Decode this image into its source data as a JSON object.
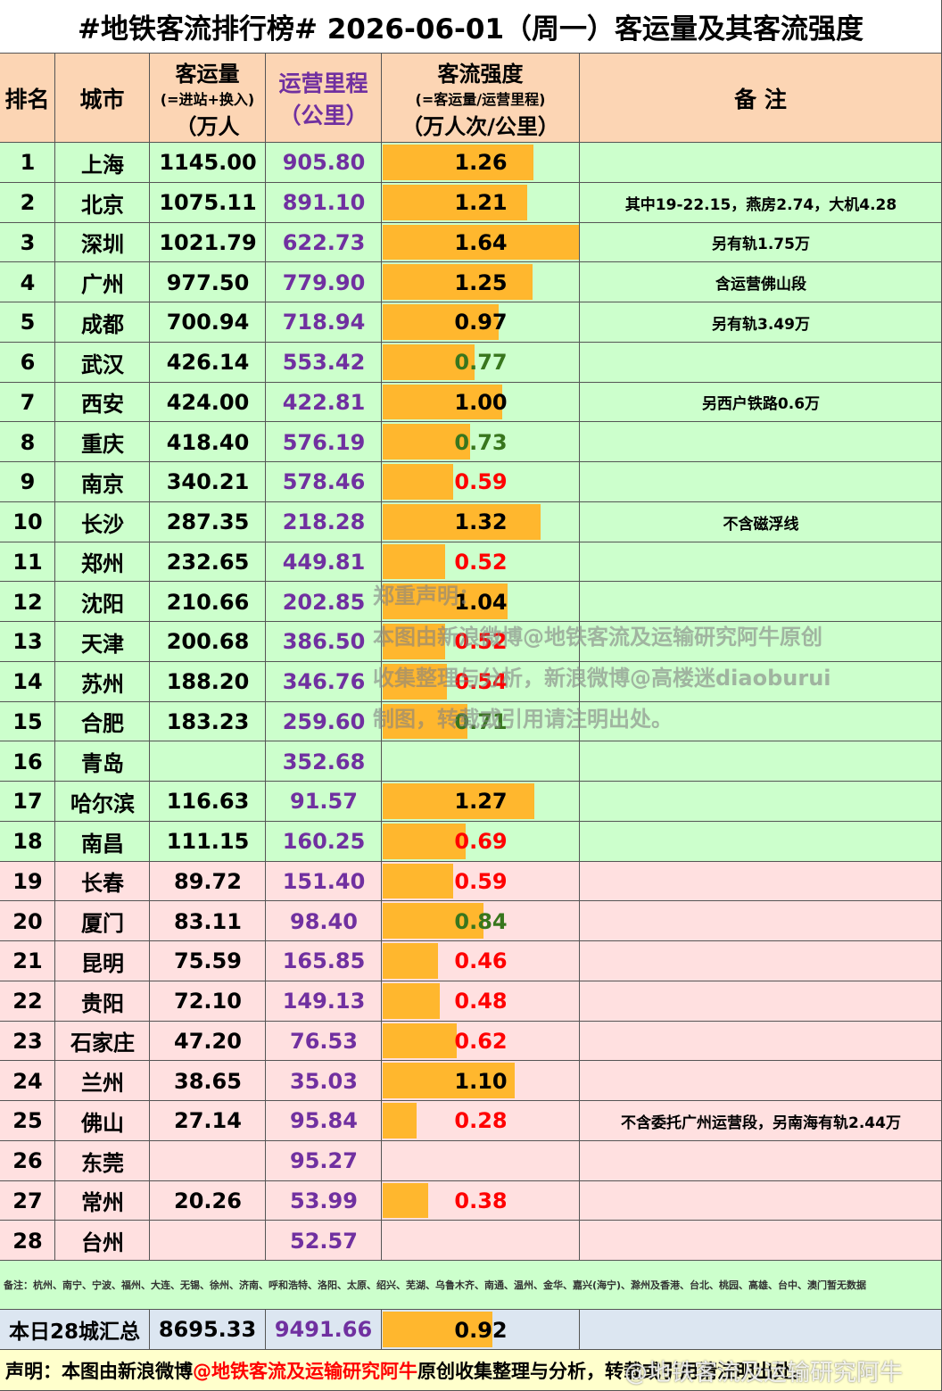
{
  "title": "#地铁客流排行榜# 2026-06-01（周一）客运量及其客流强度",
  "header": {
    "rank": "排名",
    "city": "城市",
    "ridership": [
      "客运量",
      "(=进站+换入)",
      "（万人"
    ],
    "mileage": [
      "运营里程",
      "（公里）"
    ],
    "intensity": [
      "客流强度",
      "(=客运量/运营里程)",
      "（万人次/公里）"
    ],
    "note": "备 注"
  },
  "rows": [
    {
      "rank": "1",
      "city": "上海",
      "ridership": "1145.00",
      "mileage": "905.80",
      "intensity": "1.26",
      "color": "#000000",
      "note": null,
      "bg": "#ccffcc"
    },
    {
      "rank": "2",
      "city": "北京",
      "ridership": "1075.11",
      "mileage": "891.10",
      "intensity": "1.21",
      "color": "#000000",
      "note": "其中19-22.15，燕房2.74，大机4.28",
      "bg": "#ccffcc"
    },
    {
      "rank": "3",
      "city": "深圳",
      "ridership": "1021.79",
      "mileage": "622.73",
      "intensity": "1.64",
      "color": "#000000",
      "note": "另有轨1.75万",
      "bg": "#ccffcc"
    },
    {
      "rank": "4",
      "city": "广州",
      "ridership": "977.50",
      "mileage": "779.90",
      "intensity": "1.25",
      "color": "#000000",
      "note": "含运营佛山段",
      "bg": "#ccffcc"
    },
    {
      "rank": "5",
      "city": "成都",
      "ridership": "700.94",
      "mileage": "718.94",
      "intensity": "0.97",
      "color": "#000000",
      "note": "另有轨3.49万",
      "bg": "#ccffcc"
    },
    {
      "rank": "6",
      "city": "武汉",
      "ridership": "426.14",
      "mileage": "553.42",
      "intensity": "0.77",
      "color": "#38761d",
      "note": null,
      "bg": "#ccffcc"
    },
    {
      "rank": "7",
      "city": "西安",
      "ridership": "424.00",
      "mileage": "422.81",
      "intensity": "1.00",
      "color": "#000000",
      "note": "另西户铁路0.6万",
      "bg": "#ccffcc"
    },
    {
      "rank": "8",
      "city": "重庆",
      "ridership": "418.40",
      "mileage": "576.19",
      "intensity": "0.73",
      "color": "#38761d",
      "note": null,
      "bg": "#ccffcc"
    },
    {
      "rank": "9",
      "city": "南京",
      "ridership": "340.21",
      "mileage": "578.46",
      "intensity": "0.59",
      "color": "#ff0000",
      "note": null,
      "bg": "#ccffcc"
    },
    {
      "rank": "10",
      "city": "长沙",
      "ridership": "287.35",
      "mileage": "218.28",
      "intensity": "1.32",
      "color": "#000000",
      "note": "不含磁浮线",
      "bg": "#ccffcc"
    },
    {
      "rank": "11",
      "city": "郑州",
      "ridership": "232.65",
      "mileage": "449.81",
      "intensity": "0.52",
      "color": "#ff0000",
      "note": null,
      "bg": "#ccffcc"
    },
    {
      "rank": "12",
      "city": "沈阳",
      "ridership": "210.66",
      "mileage": "202.85",
      "intensity": "1.04",
      "color": "#000000",
      "note": null,
      "bg": "#ccffcc"
    },
    {
      "rank": "13",
      "city": "天津",
      "ridership": "200.68",
      "mileage": "386.50",
      "intensity": "0.52",
      "color": "#ff0000",
      "note": null,
      "bg": "#ccffcc"
    },
    {
      "rank": "14",
      "city": "苏州",
      "ridership": "188.20",
      "mileage": "346.76",
      "intensity": "0.54",
      "color": "#ff0000",
      "note": null,
      "bg": "#ccffcc"
    },
    {
      "rank": "15",
      "city": "合肥",
      "ridership": "183.23",
      "mileage": "259.60",
      "intensity": "0.71",
      "color": "#38761d",
      "note": null,
      "bg": "#ccffcc"
    },
    {
      "rank": "16",
      "city": "青岛",
      "ridership": null,
      "mileage": "352.68",
      "intensity": null,
      "color": "#000000",
      "note": null,
      "bg": "#ccffcc"
    },
    {
      "rank": "17",
      "city": "哈尔滨",
      "ridership": "116.63",
      "mileage": "91.57",
      "intensity": "1.27",
      "color": "#000000",
      "note": null,
      "bg": "#ccffcc"
    },
    {
      "rank": "18",
      "city": "南昌",
      "ridership": "111.15",
      "mileage": "160.25",
      "intensity": "0.69",
      "color": "#ff0000",
      "note": null,
      "bg": "#ccffcc"
    },
    {
      "rank": "19",
      "city": "长春",
      "ridership": "89.72",
      "mileage": "151.40",
      "intensity": "0.59",
      "color": "#ff0000",
      "note": null,
      "bg": "#ffe0e0"
    },
    {
      "rank": "20",
      "city": "厦门",
      "ridership": "83.11",
      "mileage": "98.40",
      "intensity": "0.84",
      "color": "#38761d",
      "note": null,
      "bg": "#ffe0e0"
    },
    {
      "rank": "21",
      "city": "昆明",
      "ridership": "75.59",
      "mileage": "165.85",
      "intensity": "0.46",
      "color": "#ff0000",
      "note": null,
      "bg": "#ffe0e0"
    },
    {
      "rank": "22",
      "city": "贵阳",
      "ridership": "72.10",
      "mileage": "149.13",
      "intensity": "0.48",
      "color": "#ff0000",
      "note": null,
      "bg": "#ffe0e0"
    },
    {
      "rank": "23",
      "city": "石家庄",
      "ridership": "47.20",
      "mileage": "76.53",
      "intensity": "0.62",
      "color": "#ff0000",
      "note": null,
      "bg": "#ffe0e0"
    },
    {
      "rank": "24",
      "city": "兰州",
      "ridership": "38.65",
      "mileage": "35.03",
      "intensity": "1.10",
      "color": "#000000",
      "note": null,
      "bg": "#ffe0e0"
    },
    {
      "rank": "25",
      "city": "佛山",
      "ridership": "27.14",
      "mileage": "95.84",
      "intensity": "0.28",
      "color": "#ff0000",
      "note": "不含委托广州运营段，另南海有轨2.44万",
      "bg": "#ffe0e0"
    },
    {
      "rank": "26",
      "city": "东莞",
      "ridership": null,
      "mileage": "95.27",
      "intensity": null,
      "color": "#000000",
      "note": null,
      "bg": "#ffe0e0"
    },
    {
      "rank": "27",
      "city": "常州",
      "ridership": "20.26",
      "mileage": "53.99",
      "intensity": "0.38",
      "color": "#ff0000",
      "note": null,
      "bg": "#ffe0e0"
    },
    {
      "rank": "28",
      "city": "台州",
      "ridership": null,
      "mileage": "52.57",
      "intensity": null,
      "color": "#000000",
      "note": null,
      "bg": "#ffe0e0"
    }
  ],
  "remark": "备注：杭州、南宁、宁波、福州、大连、无锡、徐州、济南、呼和浩特、洛阳、太原、绍兴、芜湖、乌鲁木齐、南通、温州、金华、嘉兴(海宁)、滁州及香港、台北、桃园、高雄、台中、澳门暂无数据",
  "summary": {
    "label": "本日28城汇总",
    "ridership": "8695.33",
    "mileage": "9491.66",
    "intensity": "0.92"
  },
  "disclaimer": [
    "郑重声明：",
    "本图由新浪微博@地铁客流及运输研究阿牛原创",
    "收集整理与分析，新浪微博@高楼迷diaoburui",
    "制图，转载或引用请注明出处。"
  ],
  "footer": {
    "prefix": "声明：本图由新浪微博",
    "highlight": "@地铁客流及运输研究阿牛",
    "suffix": " 原创收集整理与分析，转载或引用请注明出处。",
    "watermark": "@地铁客流及运输研究阿牛"
  }
}
